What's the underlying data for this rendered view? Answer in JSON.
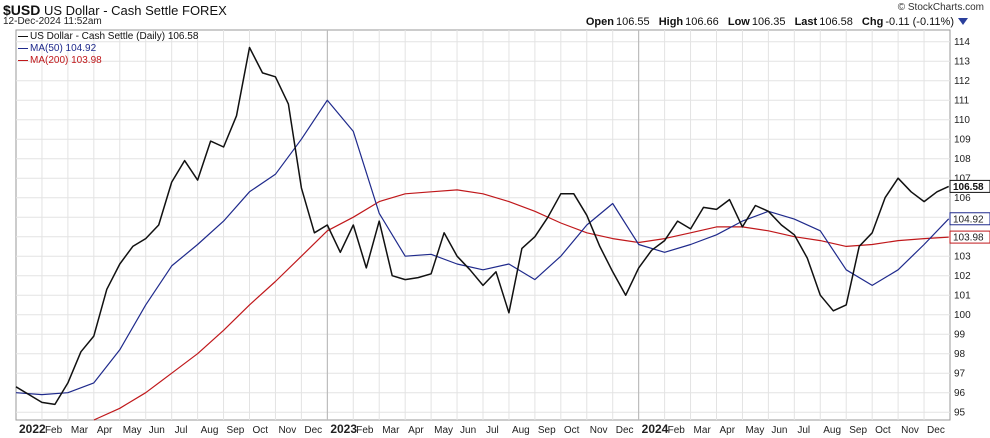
{
  "header": {
    "symbol": "$USD",
    "name": "US Dollar - Cash Settle",
    "exchange": "FOREX",
    "date": "12-Dec-2024 11:52am",
    "copyright": "© StockCharts.com",
    "quote": [
      {
        "label": "Open",
        "value": "106.55"
      },
      {
        "label": "High",
        "value": "106.66"
      },
      {
        "label": "Low",
        "value": "106.35"
      },
      {
        "label": "Last",
        "value": "106.58"
      },
      {
        "label": "Chg",
        "value": "-0.11 (-0.11%)"
      }
    ]
  },
  "legend": [
    {
      "label": "US Dollar - Cash Settle (Daily) 106.58",
      "color": "#111111"
    },
    {
      "label": "MA(50) 104.92",
      "color": "#1f2a8c"
    },
    {
      "label": "MA(200) 103.98",
      "color": "#c0181b"
    }
  ],
  "chart_data": {
    "type": "line",
    "x_axis_labels": [
      "2022",
      "Feb",
      "Mar",
      "Apr",
      "May",
      "Jun",
      "Jul",
      "Aug",
      "Sep",
      "Oct",
      "Nov",
      "Dec",
      "2023",
      "Feb",
      "Mar",
      "Apr",
      "May",
      "Jun",
      "Jul",
      "Aug",
      "Sep",
      "Oct",
      "Nov",
      "Dec",
      "2024",
      "Feb",
      "Mar",
      "Apr",
      "May",
      "Jun",
      "Jul",
      "Aug",
      "Sep",
      "Oct",
      "Nov",
      "Dec"
    ],
    "y_ticks": [
      95,
      96,
      97,
      98,
      99,
      100,
      101,
      102,
      103,
      104,
      105,
      106,
      107,
      108,
      109,
      110,
      111,
      112,
      113,
      114
    ],
    "ylim": [
      94.6,
      114.6
    ],
    "xlim": [
      0,
      36
    ],
    "grid": true,
    "value_labels": [
      {
        "text": "106.58",
        "value": 106.58,
        "color": "#111111"
      },
      {
        "text": "104.92",
        "value": 104.92,
        "color": "#1f2a8c"
      },
      {
        "text": "103.98",
        "value": 103.98,
        "color": "#c0181b"
      }
    ],
    "series": [
      {
        "name": "US Dollar - Cash Settle (Daily)",
        "color": "#111111",
        "x": [
          0,
          0.5,
          1,
          1.5,
          2,
          2.5,
          3,
          3.5,
          4,
          4.5,
          5,
          5.5,
          6,
          6.5,
          7,
          7.5,
          8,
          8.5,
          9,
          9.5,
          10,
          10.5,
          11,
          11.5,
          12,
          12.5,
          13,
          13.5,
          14,
          14.5,
          15,
          15.5,
          16,
          16.5,
          17,
          17.5,
          18,
          18.5,
          19,
          19.5,
          20,
          20.5,
          21,
          21.5,
          22,
          22.5,
          23,
          23.5,
          24,
          24.5,
          25,
          25.5,
          26,
          26.5,
          27,
          27.5,
          28,
          28.5,
          29,
          29.5,
          30,
          30.5,
          31,
          31.5,
          32,
          32.5,
          33,
          33.5,
          34,
          34.5,
          35,
          35.5,
          35.95
        ],
        "values": [
          96.3,
          95.9,
          95.5,
          95.4,
          96.5,
          98.1,
          98.9,
          101.3,
          102.6,
          103.5,
          103.9,
          104.6,
          106.8,
          107.9,
          106.9,
          108.9,
          108.6,
          110.2,
          113.7,
          112.4,
          112.2,
          110.8,
          106.5,
          104.2,
          104.6,
          103.2,
          104.6,
          102.4,
          104.8,
          102.0,
          101.8,
          101.9,
          102.1,
          104.2,
          103.0,
          102.3,
          101.5,
          102.2,
          100.1,
          103.4,
          104.0,
          105.0,
          106.2,
          106.2,
          105.1,
          103.5,
          102.2,
          101.0,
          102.4,
          103.3,
          103.8,
          104.8,
          104.4,
          105.5,
          105.4,
          105.9,
          104.5,
          105.6,
          105.3,
          104.6,
          104.1,
          102.9,
          101.0,
          100.2,
          100.5,
          103.5,
          104.2,
          106.0,
          107.0,
          106.3,
          105.8,
          106.3,
          106.58
        ]
      },
      {
        "name": "MA(50)",
        "color": "#1f2a8c",
        "x": [
          0,
          1,
          2,
          3,
          4,
          5,
          6,
          7,
          8,
          9,
          10,
          11,
          12,
          13,
          14,
          15,
          16,
          17,
          18,
          19,
          20,
          21,
          22,
          23,
          24,
          25,
          26,
          27,
          28,
          29,
          30,
          31,
          32,
          33,
          34,
          35,
          35.95
        ],
        "values": [
          96.0,
          95.9,
          96.0,
          96.5,
          98.2,
          100.5,
          102.5,
          103.6,
          104.8,
          106.3,
          107.2,
          109.0,
          111.0,
          109.4,
          105.2,
          103.0,
          103.1,
          102.6,
          102.3,
          102.6,
          101.8,
          103.0,
          104.6,
          105.7,
          103.6,
          103.2,
          103.6,
          104.1,
          104.8,
          105.3,
          104.9,
          104.3,
          102.3,
          101.5,
          102.3,
          103.6,
          104.92
        ]
      },
      {
        "name": "MA(200)",
        "color": "#c0181b",
        "x": [
          3,
          4,
          5,
          6,
          7,
          8,
          9,
          10,
          11,
          12,
          13,
          14,
          15,
          16,
          17,
          18,
          19,
          20,
          21,
          22,
          23,
          24,
          25,
          26,
          27,
          28,
          29,
          30,
          31,
          32,
          33,
          34,
          35,
          35.95
        ],
        "values": [
          94.6,
          95.2,
          96.0,
          97.0,
          98.0,
          99.2,
          100.5,
          101.7,
          103.0,
          104.3,
          105.0,
          105.8,
          106.2,
          106.3,
          106.4,
          106.2,
          105.8,
          105.3,
          104.7,
          104.2,
          103.9,
          103.7,
          103.9,
          104.2,
          104.5,
          104.5,
          104.3,
          104.0,
          103.8,
          103.5,
          103.6,
          103.8,
          103.9,
          103.98
        ]
      }
    ]
  }
}
